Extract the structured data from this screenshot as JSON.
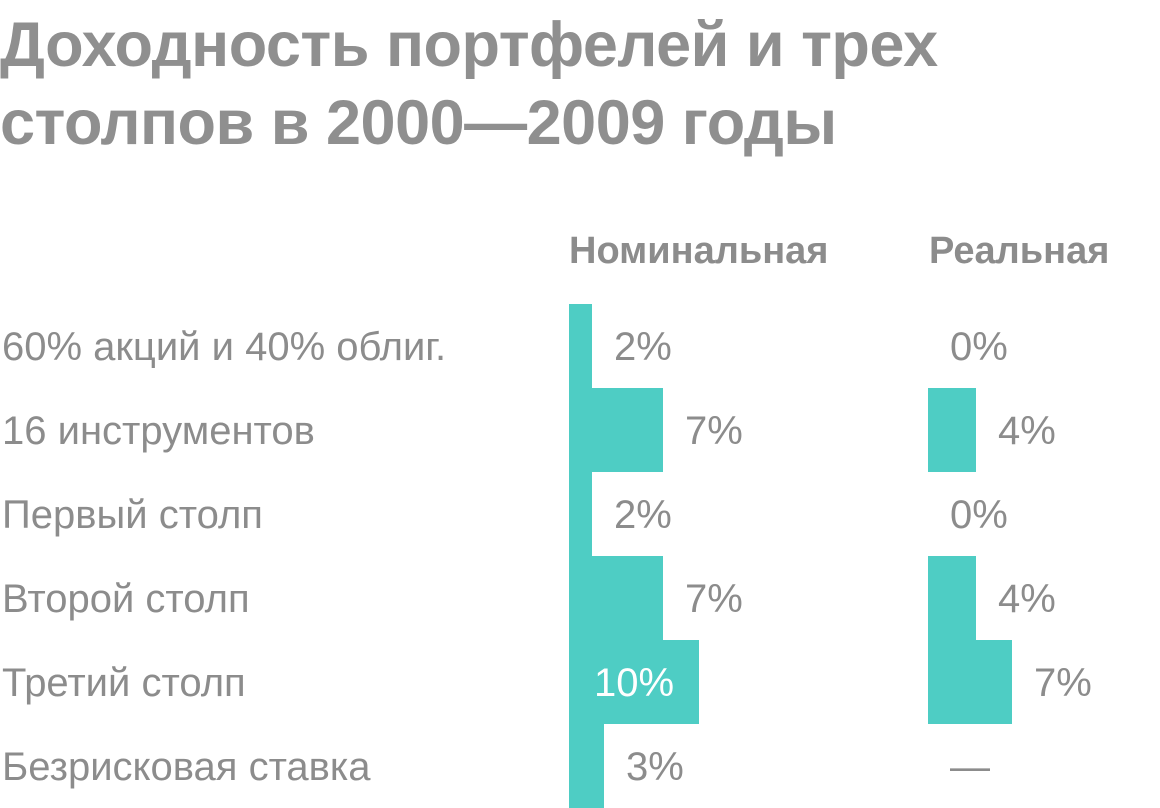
{
  "chart_data": {
    "type": "bar",
    "title_lines": [
      "Доходность портфелей и трех",
      "столпов в 2000—2009 годы"
    ],
    "categories": [
      "60% акций и 40% облиг.",
      "16 инструментов",
      "Первый столп",
      "Второй столп",
      "Третий столп",
      "Безрисковая ставка"
    ],
    "series": [
      {
        "name": "Номинальная",
        "values": [
          2,
          7,
          2,
          7,
          10,
          3
        ],
        "labels": [
          "2%",
          "7%",
          "2%",
          "7%",
          "10%",
          "3%"
        ]
      },
      {
        "name": "Реальная",
        "values": [
          0,
          4,
          0,
          4,
          7,
          null
        ],
        "labels": [
          "0%",
          "4%",
          "0%",
          "4%",
          "7%",
          "—"
        ]
      }
    ],
    "bar_color": "#4ecdc4",
    "text_color": "#8c8c8c",
    "inside_label_color": "#ffffff"
  }
}
